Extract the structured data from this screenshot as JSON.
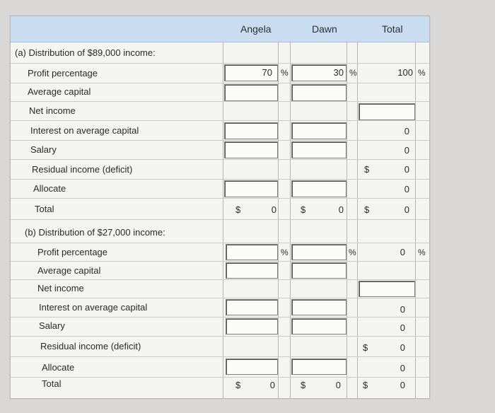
{
  "headers": {
    "angela": "Angela",
    "dawn": "Dawn",
    "total": "Total"
  },
  "section_a": {
    "title": "(a) Distribution of $89,000 income:",
    "rows": [
      "Profit percentage",
      "Average capital",
      "Net income",
      "Interest on average capital",
      "Salary",
      "Residual income (deficit)",
      "Allocate",
      "Total"
    ],
    "angela_pct": "70",
    "dawn_pct": "30",
    "total_pct": "100",
    "total_col": [
      "0",
      "0",
      "0",
      "0",
      "0"
    ],
    "angela_total": "0",
    "dawn_total": "0"
  },
  "section_b": {
    "title": "(b) Distribution of $27,000 income:",
    "rows": [
      "Profit percentage",
      "Average capital",
      "Net income",
      "Interest on average capital",
      "Salary",
      "Residual income (deficit)",
      "Allocate",
      "Total"
    ],
    "total_pct": "0",
    "total_col": [
      "0",
      "0",
      "0",
      "0",
      "0"
    ],
    "angela_total": "0",
    "dawn_total": "0"
  },
  "symbols": {
    "pct": "%",
    "dollar": "$"
  }
}
